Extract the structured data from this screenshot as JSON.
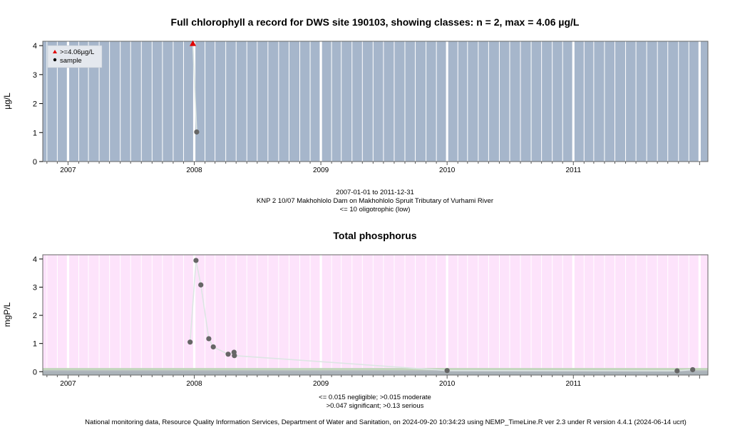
{
  "colors": {
    "panel1_bg": "#a6b6cb",
    "panel2_bg": "#fde3fb",
    "band_green": "#c3d6bd",
    "band_grey": "#aab2b8",
    "point": "#666666",
    "highlight": "#e00000",
    "line": "#dde6e4"
  },
  "footer": {
    "credit": "National monitoring data, Resource Quality Information Services, Department of Water and Sanitation, on 2024-09-20 10:34:23 using NEMP_TimeLine.R ver 2.3 under R version 4.4.1 (2024-06-14 ucrt)"
  },
  "chart_data": [
    {
      "type": "line",
      "title": "Full chlorophyll a record for DWS site 190103, showing classes: n = 2, max = 4.06 µg/L",
      "ylabel": "µg/L",
      "ylim": [
        0,
        4.15
      ],
      "xlim": [
        "2006-10-20",
        "2012-01-25"
      ],
      "x_tick_labels": [
        "2007",
        "2008",
        "2009",
        "2010",
        "2011"
      ],
      "y_ticks": [
        0,
        1,
        2,
        3,
        4
      ],
      "grid": true,
      "legend_position": "top-left",
      "legend": [
        {
          "label": ">=4.06µg/L",
          "marker": "triangle",
          "color": "#e00000"
        },
        {
          "label": "sample",
          "marker": "circle",
          "color": "#000000"
        }
      ],
      "notes": [
        "2007-01-01 to 2011-12-31",
        "KNP 2 10/07 Makhohlolo Dam on Makhohlolo Spruit Tributary of Vurhami River",
        "<= 10 oligotrophic (low)"
      ],
      "series": [
        {
          "name": "sample",
          "points": [
            {
              "x": "2007-12-28",
              "y": 4.06,
              "flag": ">=4.06µg/L"
            },
            {
              "x": "2008-01-08",
              "y": 1.02
            }
          ]
        }
      ]
    },
    {
      "type": "line",
      "title": "Total phosphorus",
      "ylabel": "mgP/L",
      "ylim": [
        -0.12,
        4.15
      ],
      "xlim": [
        "2006-10-20",
        "2012-01-25"
      ],
      "x_tick_labels": [
        "2007",
        "2008",
        "2009",
        "2010",
        "2011"
      ],
      "y_ticks": [
        0,
        1,
        2,
        3,
        4
      ],
      "grid": true,
      "bands": [
        {
          "from": 0,
          "to": 0.015,
          "label": "negligible"
        },
        {
          "from": 0.015,
          "to": 0.047,
          "label": "moderate"
        },
        {
          "from": 0.047,
          "to": 0.13,
          "label": "significant"
        }
      ],
      "notes": [
        "<= 0.015 negligible; >0.015 moderate",
        ">0.047 significant; >0.13 serious"
      ],
      "series": [
        {
          "points": [
            {
              "x": "2007-12-20",
              "y": 1.05
            },
            {
              "x": "2008-01-06",
              "y": 3.95
            },
            {
              "x": "2008-01-20",
              "y": 3.08
            },
            {
              "x": "2008-02-12",
              "y": 1.17
            },
            {
              "x": "2008-02-25",
              "y": 0.88
            },
            {
              "x": "2008-04-08",
              "y": 0.62
            },
            {
              "x": "2008-04-25",
              "y": 0.69
            },
            {
              "x": "2008-04-26",
              "y": 0.57
            },
            {
              "x": "2010-01-01",
              "y": 0.04
            },
            {
              "x": "2011-10-28",
              "y": 0.03
            },
            {
              "x": "2011-12-12",
              "y": 0.07
            }
          ]
        }
      ]
    }
  ]
}
